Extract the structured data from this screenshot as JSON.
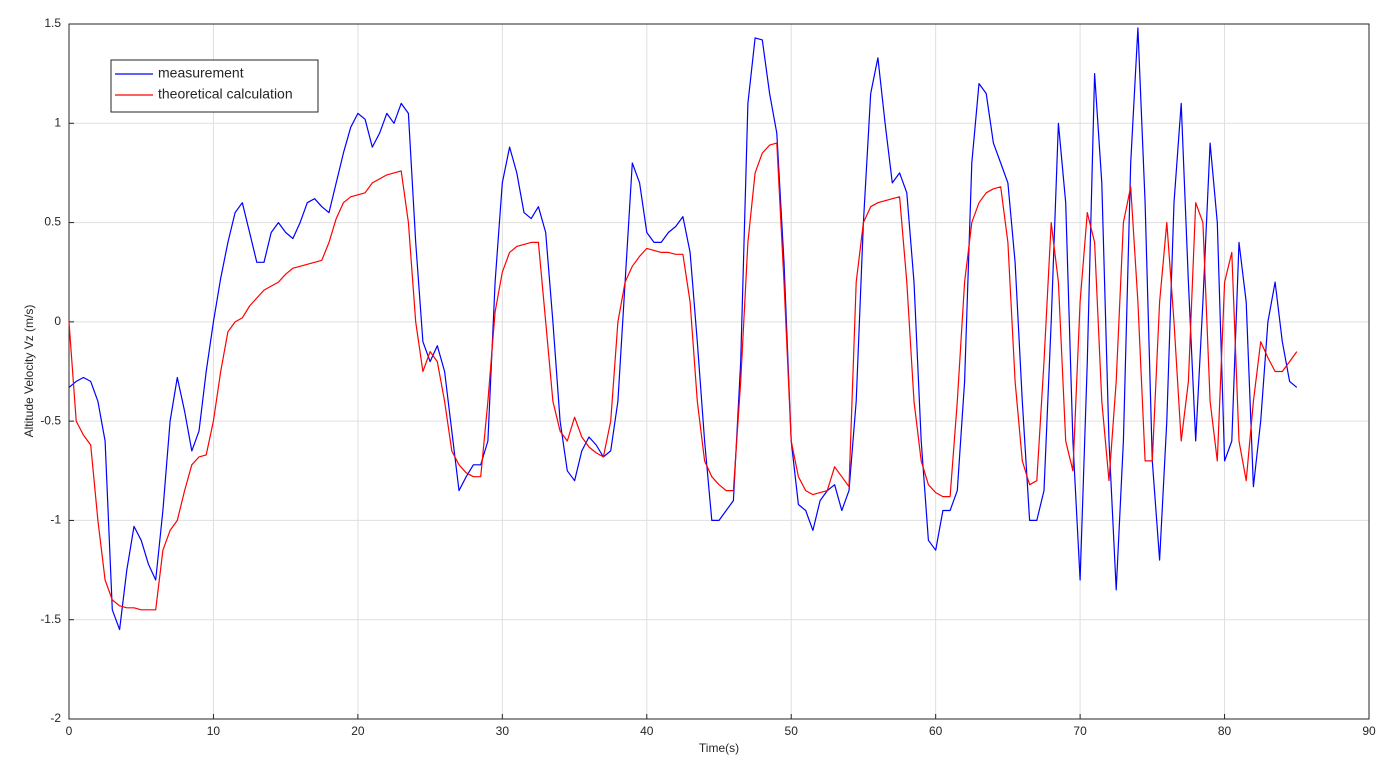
{
  "chart_data": {
    "type": "line",
    "xlabel": "Time(s)",
    "ylabel": "Altitude Velocity Vz (m/s)",
    "xlim": [
      0,
      90
    ],
    "ylim": [
      -2,
      1.5
    ],
    "xticks": [
      0,
      10,
      20,
      30,
      40,
      50,
      60,
      70,
      80,
      90
    ],
    "yticks": [
      -2,
      -1.5,
      -1,
      -0.5,
      0,
      0.5,
      1,
      1.5
    ],
    "grid": true,
    "legend": "upper-left",
    "x": [
      0,
      0.5,
      1,
      1.5,
      2,
      2.5,
      3,
      3.5,
      4,
      4.5,
      5,
      5.5,
      6,
      6.5,
      7,
      7.5,
      8,
      8.5,
      9,
      9.5,
      10,
      10.5,
      11,
      11.5,
      12,
      12.5,
      13,
      13.5,
      14,
      14.5,
      15,
      15.5,
      16,
      16.5,
      17,
      17.5,
      18,
      18.5,
      19,
      19.5,
      20,
      20.5,
      21,
      21.5,
      22,
      22.5,
      23,
      23.5,
      24,
      24.5,
      25,
      25.5,
      26,
      26.5,
      27,
      27.5,
      28,
      28.5,
      29,
      29.5,
      30,
      30.5,
      31,
      31.5,
      32,
      32.5,
      33,
      33.5,
      34,
      34.5,
      35,
      35.5,
      36,
      36.5,
      37,
      37.5,
      38,
      38.5,
      39,
      39.5,
      40,
      40.5,
      41,
      41.5,
      42,
      42.5,
      43,
      43.5,
      44,
      44.5,
      45,
      45.5,
      46,
      46.5,
      47,
      47.5,
      48,
      48.5,
      49,
      49.5,
      50,
      50.5,
      51,
      51.5,
      52,
      52.5,
      53,
      53.5,
      54,
      54.5,
      55,
      55.5,
      56,
      56.5,
      57,
      57.5,
      58,
      58.5,
      59,
      59.5,
      60,
      60.5,
      61,
      61.5,
      62,
      62.5,
      63,
      63.5,
      64,
      64.5,
      65,
      65.5,
      66,
      66.5,
      67,
      67.5,
      68,
      68.5,
      69,
      69.5,
      70,
      70.5,
      71,
      71.5,
      72,
      72.5,
      73,
      73.5,
      74,
      74.5,
      75,
      75.5,
      76,
      76.5,
      77,
      77.5,
      78,
      78.5,
      79,
      79.5,
      80,
      80.5,
      81,
      81.5,
      82,
      82.5,
      83,
      83.5,
      84,
      84.5,
      85
    ],
    "series": [
      {
        "name": "measurement",
        "color": "#0000ff",
        "values": [
          -0.33,
          -0.3,
          -0.28,
          -0.3,
          -0.4,
          -0.6,
          -1.45,
          -1.55,
          -1.25,
          -1.03,
          -1.1,
          -1.22,
          -1.3,
          -0.95,
          -0.5,
          -0.28,
          -0.45,
          -0.65,
          -0.55,
          -0.25,
          0.0,
          0.22,
          0.4,
          0.55,
          0.6,
          0.45,
          0.3,
          0.3,
          0.45,
          0.5,
          0.45,
          0.42,
          0.5,
          0.6,
          0.62,
          0.58,
          0.55,
          0.7,
          0.85,
          0.98,
          1.05,
          1.02,
          0.88,
          0.95,
          1.05,
          1.0,
          1.1,
          1.05,
          0.4,
          -0.1,
          -0.2,
          -0.12,
          -0.25,
          -0.55,
          -0.85,
          -0.78,
          -0.72,
          -0.72,
          -0.6,
          0.2,
          0.7,
          0.88,
          0.75,
          0.55,
          0.52,
          0.58,
          0.45,
          0.0,
          -0.5,
          -0.75,
          -0.8,
          -0.65,
          -0.58,
          -0.62,
          -0.68,
          -0.65,
          -0.4,
          0.2,
          0.8,
          0.7,
          0.45,
          0.4,
          0.4,
          0.45,
          0.48,
          0.53,
          0.35,
          -0.1,
          -0.6,
          -1.0,
          -1.0,
          -0.95,
          -0.9,
          -0.2,
          1.1,
          1.43,
          1.42,
          1.15,
          0.95,
          0.3,
          -0.6,
          -0.92,
          -0.95,
          -1.05,
          -0.9,
          -0.85,
          -0.82,
          -0.95,
          -0.85,
          -0.4,
          0.5,
          1.15,
          1.33,
          1.0,
          0.7,
          0.75,
          0.65,
          0.2,
          -0.6,
          -1.1,
          -1.15,
          -0.95,
          -0.95,
          -0.85,
          -0.3,
          0.8,
          1.2,
          1.15,
          0.9,
          0.8,
          0.7,
          0.3,
          -0.4,
          -1.0,
          -1.0,
          -0.85,
          0.0,
          1.0,
          0.6,
          -0.6,
          -1.3,
          -0.2,
          1.25,
          0.7,
          -0.6,
          -1.35,
          -0.6,
          0.8,
          1.48,
          0.6,
          -0.7,
          -1.2,
          -0.5,
          0.6,
          1.1,
          0.2,
          -0.6,
          0.1,
          0.9,
          0.5,
          -0.7,
          -0.6,
          0.4,
          0.1,
          -0.83,
          -0.5,
          0.0,
          0.2,
          -0.1,
          -0.3,
          -0.33
        ]
      },
      {
        "name": "theoretical calculation",
        "color": "#ff0000",
        "values": [
          0.0,
          -0.5,
          -0.57,
          -0.62,
          -1.0,
          -1.3,
          -1.4,
          -1.43,
          -1.44,
          -1.44,
          -1.45,
          -1.45,
          -1.45,
          -1.15,
          -1.05,
          -1.0,
          -0.85,
          -0.72,
          -0.68,
          -0.67,
          -0.5,
          -0.25,
          -0.05,
          0.0,
          0.02,
          0.08,
          0.12,
          0.16,
          0.18,
          0.2,
          0.24,
          0.27,
          0.28,
          0.29,
          0.3,
          0.31,
          0.4,
          0.52,
          0.6,
          0.63,
          0.64,
          0.65,
          0.7,
          0.72,
          0.74,
          0.75,
          0.76,
          0.5,
          0.0,
          -0.25,
          -0.15,
          -0.2,
          -0.4,
          -0.65,
          -0.72,
          -0.76,
          -0.78,
          -0.78,
          -0.4,
          0.05,
          0.25,
          0.35,
          0.38,
          0.39,
          0.4,
          0.4,
          0.0,
          -0.4,
          -0.55,
          -0.6,
          -0.48,
          -0.58,
          -0.63,
          -0.66,
          -0.68,
          -0.5,
          0.0,
          0.2,
          0.28,
          0.33,
          0.37,
          0.36,
          0.35,
          0.35,
          0.34,
          0.34,
          0.1,
          -0.4,
          -0.7,
          -0.78,
          -0.82,
          -0.85,
          -0.85,
          -0.3,
          0.4,
          0.75,
          0.85,
          0.89,
          0.9,
          0.2,
          -0.6,
          -0.78,
          -0.85,
          -0.87,
          -0.86,
          -0.85,
          -0.73,
          -0.78,
          -0.83,
          0.2,
          0.5,
          0.58,
          0.6,
          0.61,
          0.62,
          0.63,
          0.2,
          -0.4,
          -0.7,
          -0.82,
          -0.86,
          -0.88,
          -0.88,
          -0.4,
          0.2,
          0.5,
          0.6,
          0.65,
          0.67,
          0.68,
          0.4,
          -0.3,
          -0.7,
          -0.82,
          -0.8,
          -0.2,
          0.5,
          0.2,
          -0.6,
          -0.75,
          0.1,
          0.55,
          0.4,
          -0.4,
          -0.8,
          -0.3,
          0.5,
          0.68,
          0.1,
          -0.7,
          -0.7,
          0.1,
          0.5,
          0.0,
          -0.6,
          -0.3,
          0.6,
          0.5,
          -0.4,
          -0.7,
          0.2,
          0.35,
          -0.6,
          -0.8,
          -0.4,
          -0.1,
          -0.18,
          -0.25,
          -0.25,
          -0.2,
          -0.15
        ]
      }
    ]
  }
}
